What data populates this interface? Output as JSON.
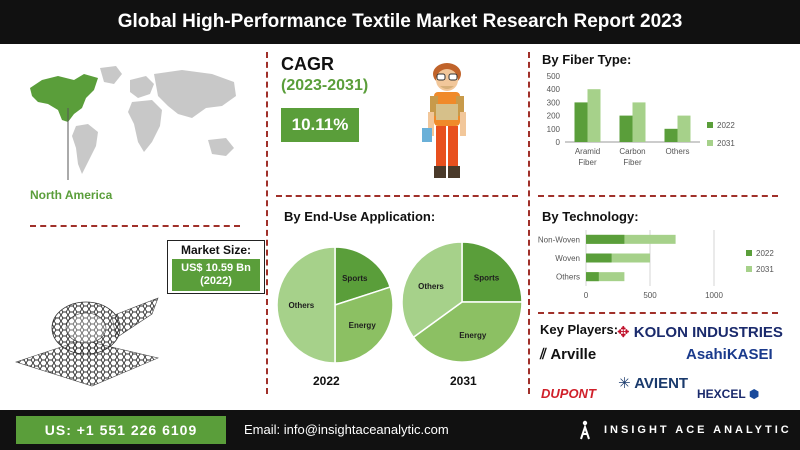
{
  "header": {
    "title": "Global High-Performance Textile Market Research Report 2023"
  },
  "region": {
    "label": "North America"
  },
  "cagr": {
    "title": "CAGR",
    "period": "(2023-2031)",
    "value": "10.11%"
  },
  "market_size": {
    "title": "Market Size:",
    "value": "US$ 10.59 Bn",
    "year": "(2022)"
  },
  "sections": {
    "fiber": "By Fiber Type:",
    "end_use": "By End-Use Application:",
    "technology": "By Technology:",
    "key_players": "Key Players:"
  },
  "key_players": [
    "KOLON INDUSTRIES",
    "Arville",
    "AsahiKASEI",
    "DUPONT",
    "AVIENT",
    "HEXCEL"
  ],
  "footer": {
    "phone": "US: +1 551 226 6109",
    "email": "Email: info@insightaceanalytic.com",
    "brand": "INSIGHT ACE ANALYTIC"
  },
  "colors": {
    "dark_green": "#5a9e3a",
    "light_green": "#a6d18a",
    "pie_mid": "#8cc063",
    "title_bg": "#111111",
    "divider": "#a0302a"
  },
  "chart_data": [
    {
      "type": "bar",
      "title": "By Fiber Type:",
      "categories": [
        "Aramid Fiber",
        "Carbon Fiber",
        "Others"
      ],
      "series": [
        {
          "name": "2022",
          "values": [
            300,
            200,
            100
          ]
        },
        {
          "name": "2031",
          "values": [
            400,
            300,
            200
          ]
        }
      ],
      "ylim": [
        0,
        500
      ],
      "yticks": [
        0,
        100,
        200,
        300,
        400,
        500
      ],
      "legend": "right",
      "grid": false
    },
    {
      "type": "bar",
      "orientation": "horizontal",
      "title": "By Technology:",
      "categories": [
        "Non-Woven",
        "Woven",
        "Others"
      ],
      "series": [
        {
          "name": "2022",
          "values": [
            300,
            200,
            100
          ]
        },
        {
          "name": "2031",
          "values": [
            700,
            500,
            300
          ]
        }
      ],
      "xlim": [
        0,
        1000
      ],
      "xticks": [
        0,
        500,
        1000
      ],
      "legend": "right",
      "grid": true
    },
    {
      "type": "pie",
      "title": "By End-Use Application:",
      "year_label": "2022",
      "slices": [
        {
          "label": "Sports",
          "value": 20
        },
        {
          "label": "Energy",
          "value": 30
        },
        {
          "label": "Others",
          "value": 50
        }
      ]
    },
    {
      "type": "pie",
      "year_label": "2031",
      "slices": [
        {
          "label": "Sports",
          "value": 25
        },
        {
          "label": "Energy",
          "value": 40
        },
        {
          "label": "Others",
          "value": 35
        }
      ]
    }
  ]
}
